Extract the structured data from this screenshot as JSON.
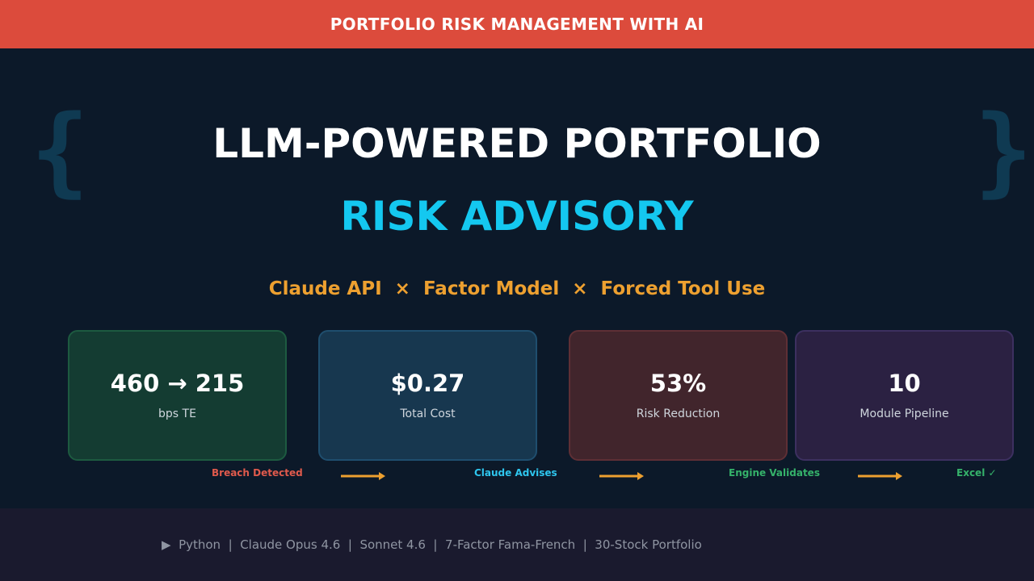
{
  "banner": {
    "title": "PORTFOLIO RISK MANAGEMENT WITH AI"
  },
  "decor": {
    "brace_left": "{",
    "brace_right": "}"
  },
  "hero": {
    "title_line1": "LLM-POWERED PORTFOLIO",
    "title_line2": "RISK ADVISORY",
    "subtitle": "Claude API  ×  Factor Model  ×  Forced Tool Use"
  },
  "cards": [
    {
      "value": "460 → 215",
      "label": "bps TE"
    },
    {
      "value": "$0.27",
      "label": "Total Cost"
    },
    {
      "value": "53%",
      "label": "Risk Reduction"
    },
    {
      "value": "10",
      "label": "Module Pipeline"
    }
  ],
  "flow": {
    "steps": [
      "Breach Detected",
      "Claude Advises",
      "Engine Validates",
      "Excel ✓"
    ],
    "arrow_color": "#eda030"
  },
  "footer": {
    "text": "▶  Python  |  Claude Opus 4.6  |  Sonnet 4.6  |  7-Factor Fama-French  |  30-Stock Portfolio"
  },
  "colors": {
    "banner": "#dc4b3c",
    "background": "#0c1929",
    "accent_cyan": "#14c8f0",
    "accent_orange": "#eda030",
    "footer_bg": "#1a1a2e"
  }
}
